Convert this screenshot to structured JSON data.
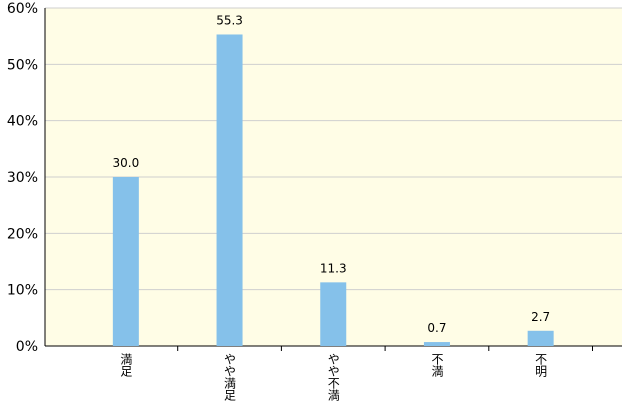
{
  "chart_data": {
    "type": "bar",
    "categories": [
      "満足",
      "やや満足",
      "やや不満",
      "不満",
      "不明"
    ],
    "values": [
      30.0,
      55.3,
      11.3,
      0.7,
      2.7
    ],
    "value_labels": [
      "30.0",
      "55.3",
      "11.3",
      "0.7",
      "2.7"
    ],
    "color": "#85c1ea",
    "ylim": [
      0,
      60
    ],
    "yticks": [
      {
        "value": 0,
        "label": "0%"
      },
      {
        "value": 10,
        "label": "10%"
      },
      {
        "value": 20,
        "label": "20%"
      },
      {
        "value": 30,
        "label": "30%"
      },
      {
        "value": 40,
        "label": "40%"
      },
      {
        "value": 50,
        "label": "50%"
      },
      {
        "value": 60,
        "label": "60%"
      }
    ],
    "grid": true
  }
}
